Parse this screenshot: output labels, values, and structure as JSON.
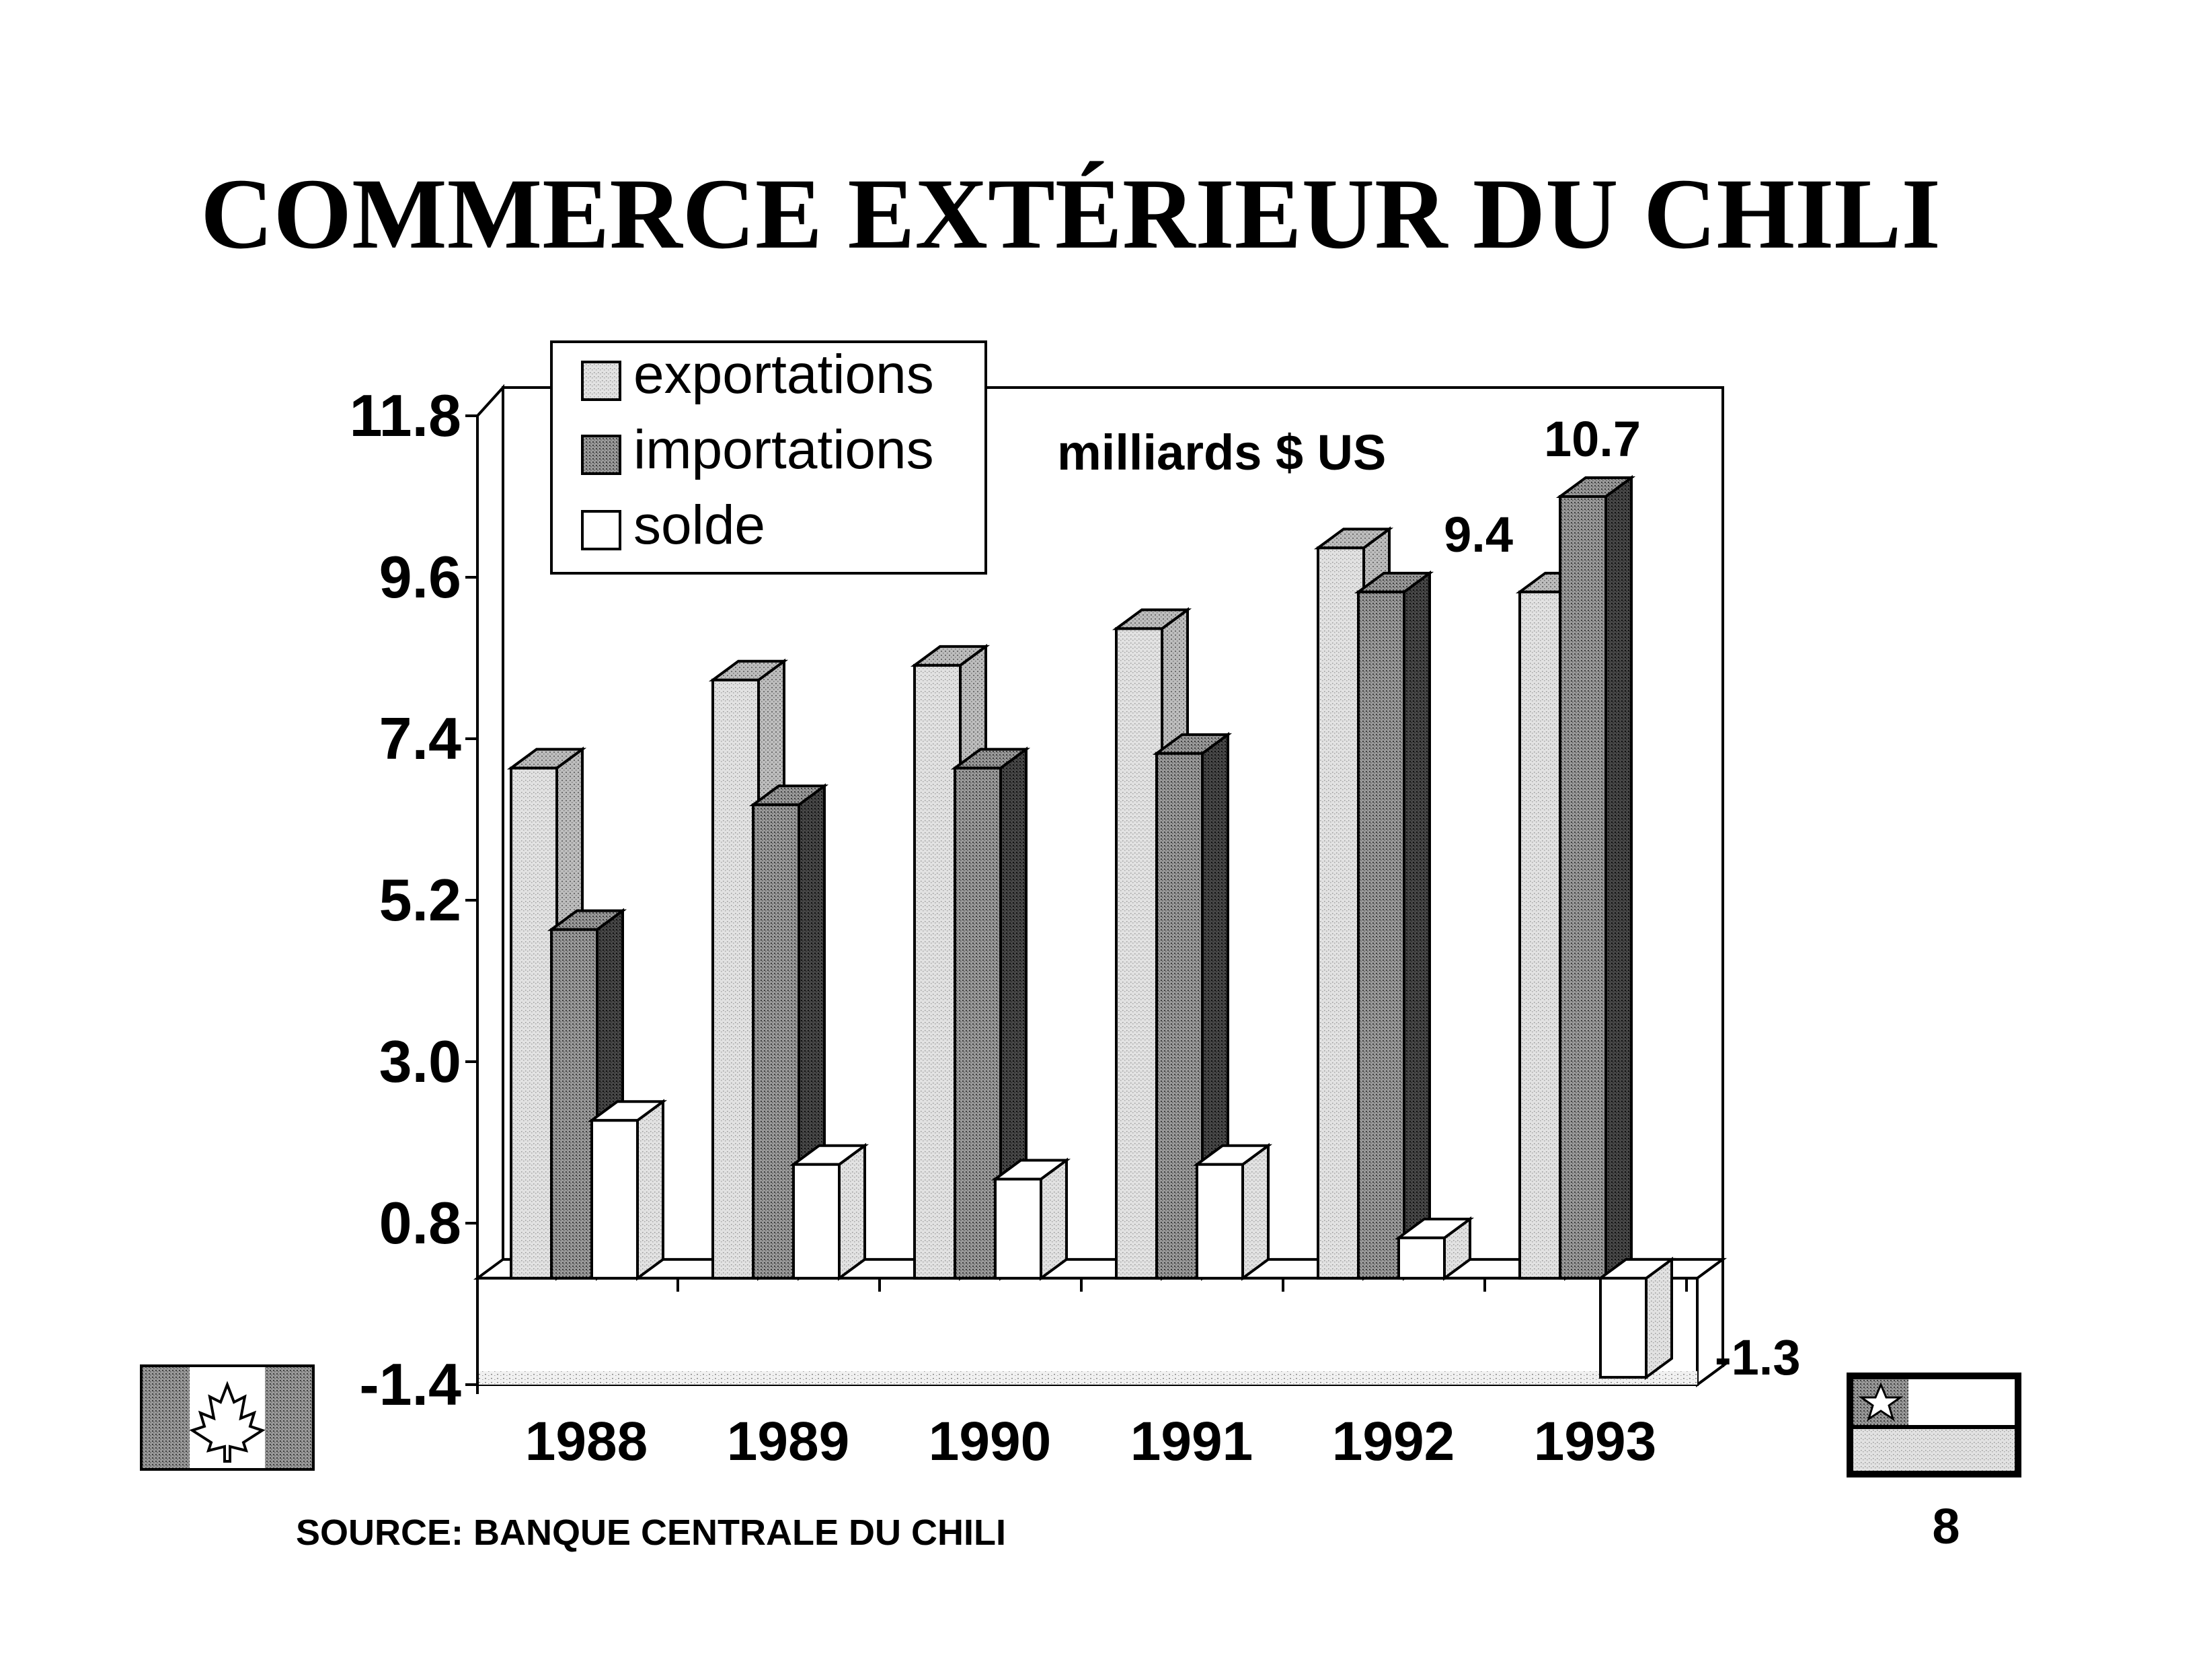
{
  "page": {
    "title": "COMMERCE EXTÉRIEUR DU CHILI",
    "source": "SOURCE:  BANQUE CENTRALE DU CHILI",
    "page_number": "8"
  },
  "flags": {
    "left": {
      "icon": "canada-flag-icon"
    },
    "right": {
      "icon": "chile-flag-icon"
    }
  },
  "chart_data": {
    "type": "bar",
    "title": "COMMERCE EXTÉRIEUR DU CHILI",
    "unit_label": "milliards $ US",
    "xlabel": "",
    "ylabel": "",
    "categories": [
      "1988",
      "1989",
      "1990",
      "1991",
      "1992",
      "1993"
    ],
    "series": [
      {
        "name": "exportations",
        "values": [
          7.0,
          8.2,
          8.4,
          8.9,
          10.0,
          9.4
        ],
        "color": "#d4d4d4"
      },
      {
        "name": "importations",
        "values": [
          4.8,
          6.5,
          7.0,
          7.2,
          9.4,
          10.7
        ],
        "color": "#8a8a8a"
      },
      {
        "name": "solde",
        "values": [
          2.2,
          1.6,
          1.4,
          1.6,
          0.6,
          -1.3
        ],
        "color": "#ffffff"
      }
    ],
    "data_labels": [
      {
        "text": "9.4",
        "series": "exportations",
        "category": "1993"
      },
      {
        "text": "10.7",
        "series": "importations",
        "category": "1993"
      },
      {
        "text": "-1.3",
        "series": "solde",
        "category": "1993"
      }
    ],
    "yticks": [
      "11.8",
      "9.6",
      "7.4",
      "5.2",
      "3.0",
      "0.8",
      "-1.4"
    ],
    "ylim": [
      -1.4,
      11.8
    ],
    "grid": false,
    "legend_position": "top-left",
    "style": "3d-bar"
  }
}
